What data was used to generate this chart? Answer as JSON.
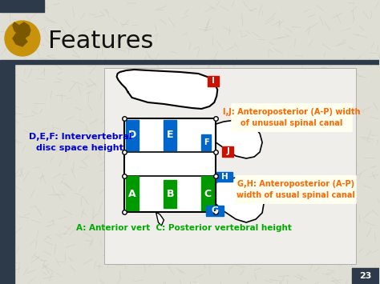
{
  "bg_color": "#deded4",
  "title": "Features",
  "title_color": "#111111",
  "title_fontsize": 22,
  "slide_number": "23",
  "header_top_bar_color": "#2d3a4a",
  "header_bottom_bar_color": "#2d3a4a",
  "logo_color": "#c8920a",
  "annotation_ij_line1": "I,J: Anteroposterior (A-P) width",
  "annotation_ij_line2": "of unusual spinal canal",
  "annotation_ij_color": "#ff6600",
  "annotation_ij_bg": "#fffff0",
  "annotation_gh_line1": "G,H: Anteroposterior (A-P)",
  "annotation_gh_line2": "width of usual spinal canal",
  "annotation_gh_color": "#ff6600",
  "annotation_gh_bg": "#fffff0",
  "annotation_def_text": "D,E,F: Intervertebral\ndisc space height",
  "annotation_def_color": "#0000cc",
  "annotation_bottom_text": "A: Anterior vert  C: Posterior vertebral height",
  "annotation_bottom_color": "#00aa00",
  "green": "#009900",
  "blue": "#0066cc",
  "red": "#cc1100",
  "white": "#ffffff",
  "black": "#000000",
  "img_bg": "#f0eeea",
  "spine_fill": "#ffffff"
}
